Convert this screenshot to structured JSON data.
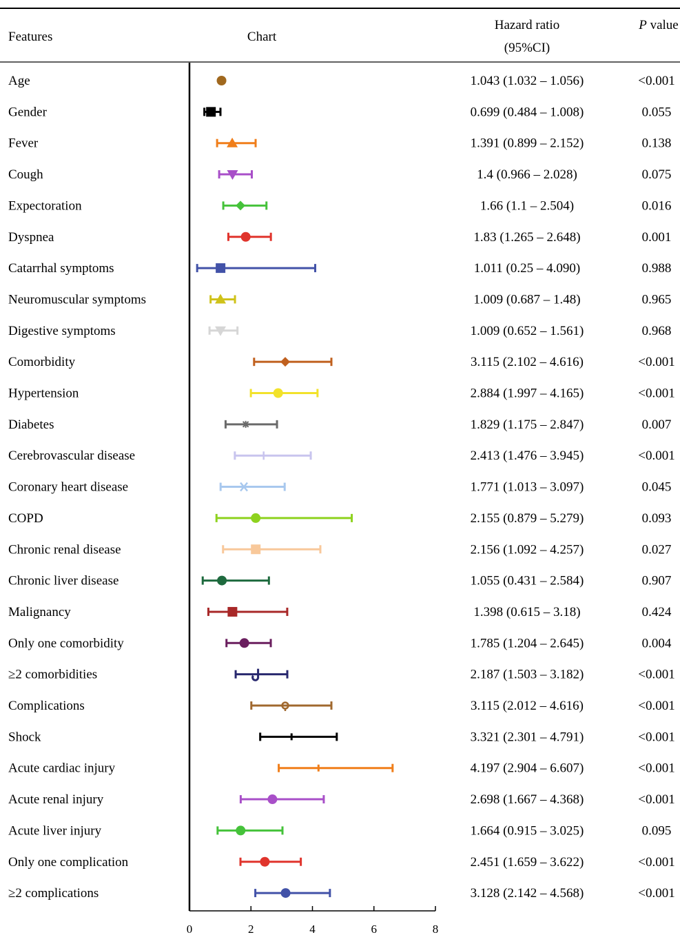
{
  "header": {
    "features": "Features",
    "chart": "Chart",
    "hr_line1": "Hazard ratio",
    "hr_line2": "(95%CI)",
    "p_italic": "P",
    "p_rest": " value"
  },
  "chart_data": {
    "type": "forest",
    "xlim": [
      0,
      8
    ],
    "xticks": [
      "0",
      "2",
      "4",
      "6",
      "8"
    ],
    "rows": [
      {
        "feature": "Age",
        "hr": 1.043,
        "lo": 1.032,
        "hi": 1.056,
        "hr_text": "1.043 (1.032 – 1.056)",
        "p": "<0.001",
        "color": "#a0681e",
        "marker": "circle"
      },
      {
        "feature": "Gender",
        "hr": 0.699,
        "lo": 0.484,
        "hi": 1.008,
        "hr_text": "0.699 (0.484 – 1.008)",
        "p": "0.055",
        "color": "#000000",
        "marker": "square"
      },
      {
        "feature": "Fever",
        "hr": 1.391,
        "lo": 0.899,
        "hi": 2.152,
        "hr_text": "1.391 (0.899 – 2.152)",
        "p": "0.138",
        "color": "#f07e1a",
        "marker": "triangle-up"
      },
      {
        "feature": "Cough",
        "hr": 1.4,
        "lo": 0.966,
        "hi": 2.028,
        "hr_text": "1.4 (0.966 – 2.028)",
        "p": "0.075",
        "color": "#a84fc8",
        "marker": "triangle-down"
      },
      {
        "feature": "Expectoration",
        "hr": 1.66,
        "lo": 1.1,
        "hi": 2.504,
        "hr_text": "1.66 (1.1 – 2.504)",
        "p": "0.016",
        "color": "#45c23a",
        "marker": "diamond"
      },
      {
        "feature": "Dyspnea",
        "hr": 1.83,
        "lo": 1.265,
        "hi": 2.648,
        "hr_text": "1.83 (1.265 – 2.648)",
        "p": "0.001",
        "color": "#e0342c",
        "marker": "circle"
      },
      {
        "feature": "Catarrhal symptoms",
        "hr": 1.011,
        "lo": 0.25,
        "hi": 4.09,
        "hr_text": "1.011 (0.25 – 4.090)",
        "p": "0.988",
        "color": "#4252a8",
        "marker": "square"
      },
      {
        "feature": "Neuromuscular symptoms",
        "hr": 1.009,
        "lo": 0.687,
        "hi": 1.48,
        "hr_text": "1.009 (0.687 – 1.48)",
        "p": "0.965",
        "color": "#cfc21a",
        "marker": "triangle-up"
      },
      {
        "feature": "Digestive symptoms",
        "hr": 1.009,
        "lo": 0.652,
        "hi": 1.561,
        "hr_text": "1.009 (0.652 – 1.561)",
        "p": "0.968",
        "color": "#d6d6d6",
        "marker": "triangle-down"
      },
      {
        "feature": "Comorbidity",
        "hr": 3.115,
        "lo": 2.102,
        "hi": 4.616,
        "hr_text": "3.115 (2.102 – 4.616)",
        "p": "<0.001",
        "color": "#c0601e",
        "marker": "diamond"
      },
      {
        "feature": "Hypertension",
        "hr": 2.884,
        "lo": 1.997,
        "hi": 4.165,
        "hr_text": "2.884 (1.997 – 4.165)",
        "p": "<0.001",
        "color": "#f2e22a",
        "marker": "circle"
      },
      {
        "feature": "Diabetes",
        "hr": 1.829,
        "lo": 1.175,
        "hi": 2.847,
        "hr_text": "1.829 (1.175 – 2.847)",
        "p": "0.007",
        "color": "#6a6a6a",
        "marker": "star"
      },
      {
        "feature": "Cerebrovascular disease",
        "hr": 2.413,
        "lo": 1.476,
        "hi": 3.945,
        "hr_text": "2.413 (1.476 – 3.945)",
        "p": "<0.001",
        "color": "#c8c4ee",
        "marker": "plus"
      },
      {
        "feature": "Coronary heart disease",
        "hr": 1.771,
        "lo": 1.013,
        "hi": 3.097,
        "hr_text": "1.771 (1.013 – 3.097)",
        "p": "0.045",
        "color": "#a8c8ee",
        "marker": "x"
      },
      {
        "feature": "COPD",
        "hr": 2.155,
        "lo": 0.879,
        "hi": 5.279,
        "hr_text": "2.155 (0.879 – 5.279)",
        "p": "0.093",
        "color": "#8ed21e",
        "marker": "circle"
      },
      {
        "feature": "Chronic renal disease",
        "hr": 2.156,
        "lo": 1.092,
        "hi": 4.257,
        "hr_text": "2.156 (1.092 – 4.257)",
        "p": "0.027",
        "color": "#f8c89a",
        "marker": "square"
      },
      {
        "feature": "Chronic liver disease",
        "hr": 1.055,
        "lo": 0.431,
        "hi": 2.584,
        "hr_text": "1.055 (0.431 – 2.584)",
        "p": "0.907",
        "color": "#1e6a3e",
        "marker": "circle"
      },
      {
        "feature": "Malignancy",
        "hr": 1.398,
        "lo": 0.615,
        "hi": 3.18,
        "hr_text": "1.398 (0.615 – 3.18)",
        "p": "0.424",
        "color": "#a82828",
        "marker": "square"
      },
      {
        "feature": "Only one comorbidity",
        "hr": 1.785,
        "lo": 1.204,
        "hi": 2.645,
        "hr_text": "1.785 (1.204 – 2.645)",
        "p": "0.004",
        "color": "#6a1e5e",
        "marker": "circle"
      },
      {
        "feature": "≥2 comorbidities",
        "hr": 2.187,
        "lo": 1.503,
        "hi": 3.182,
        "hr_text": "2.187 (1.503 – 3.182)",
        "p": "<0.001",
        "color": "#28286e",
        "marker": "hook"
      },
      {
        "feature": "Complications",
        "hr": 3.115,
        "lo": 2.012,
        "hi": 4.616,
        "hr_text": "3.115 (2.012 – 4.616)",
        "p": "<0.001",
        "color": "#a0682e",
        "marker": "ring"
      },
      {
        "feature": "Shock",
        "hr": 3.321,
        "lo": 2.301,
        "hi": 4.791,
        "hr_text": "3.321 (2.301 – 4.791)",
        "p": "<0.001",
        "color": "#000000",
        "marker": "tick"
      },
      {
        "feature": "Acute cardiac injury",
        "hr": 4.197,
        "lo": 2.904,
        "hi": 6.607,
        "hr_text": "4.197 (2.904 – 6.607)",
        "p": "<0.001",
        "color": "#f07e1a",
        "marker": "tick"
      },
      {
        "feature": "Acute renal injury",
        "hr": 2.698,
        "lo": 1.667,
        "hi": 4.368,
        "hr_text": "2.698 (1.667 – 4.368)",
        "p": "<0.001",
        "color": "#a84fc8",
        "marker": "circle"
      },
      {
        "feature": "Acute liver injury",
        "hr": 1.664,
        "lo": 0.915,
        "hi": 3.025,
        "hr_text": "1.664 (0.915 – 3.025)",
        "p": "0.095",
        "color": "#45c23a",
        "marker": "circle"
      },
      {
        "feature": "Only one complication",
        "hr": 2.451,
        "lo": 1.659,
        "hi": 3.622,
        "hr_text": "2.451 (1.659 – 3.622)",
        "p": "<0.001",
        "color": "#e0342c",
        "marker": "circle"
      },
      {
        "feature": "≥2 complications",
        "hr": 3.128,
        "lo": 2.142,
        "hi": 4.568,
        "hr_text": "3.128 (2.142 – 4.568)",
        "p": "<0.001",
        "color": "#4252a8",
        "marker": "circle"
      }
    ]
  }
}
